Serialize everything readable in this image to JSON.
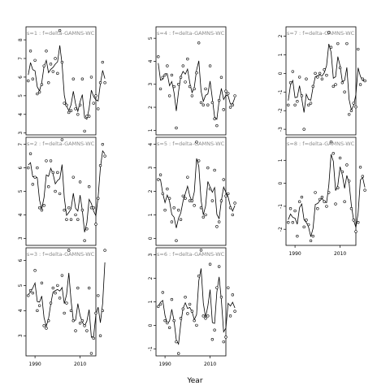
{
  "chart_data": {
    "type": "line",
    "xlabel": "Year",
    "x_ticks": [
      1990,
      2010
    ],
    "x_tick_labels": [
      "1990",
      "2010"
    ],
    "xlim": [
      1986,
      2017
    ],
    "panels": [
      {
        "label": "s=1 : f=delta-GAMNS-WC",
        "ylim": [
          2.9,
          8.7
        ],
        "yticks": [
          3,
          4,
          5,
          6,
          7,
          8
        ],
        "ytick_labels": [
          "3",
          "4",
          "5",
          "6",
          "7",
          "8"
        ],
        "values": [
          5.8,
          7.4,
          5.9,
          6.9,
          5.1,
          5.2,
          5.6,
          6.6,
          7.4,
          5.7,
          6.7,
          6.3,
          7.0,
          6.2,
          8.5,
          6.8,
          4.6,
          4.5,
          4.1,
          4.2,
          5.9,
          4.3,
          4.0,
          4.5,
          5.9,
          3.1,
          3.9,
          3.9,
          6.0,
          4.6,
          5.0,
          4.3,
          5.7,
          6.8,
          5.7
        ]
      },
      {
        "label": "s=2 : f=delta-GAMNS-WC",
        "ylim": [
          2.7,
          7.3
        ],
        "yticks": [
          3,
          4,
          5,
          6,
          7
        ],
        "ytick_labels": [
          "3",
          "4",
          "5",
          "6",
          "7"
        ],
        "values": [
          6.0,
          6.6,
          5.3,
          5.6,
          6.0,
          4.3,
          4.2,
          4.4,
          6.3,
          5.2,
          6.3,
          5.8,
          5.0,
          5.8,
          4.9,
          7.2,
          4.2,
          3.8,
          4.3,
          3.8,
          5.6,
          4.0,
          3.8,
          5.4,
          4.2,
          2.9,
          3.4,
          5.2,
          4.3,
          4.3,
          3.6,
          4.7,
          6.1,
          7.0,
          6.5
        ]
      },
      {
        "label": "s=3 : f=delta-GAMNS-WC",
        "ylim": [
          2.2,
          6.5
        ],
        "yticks": [
          3,
          4,
          5,
          6
        ],
        "ytick_labels": [
          "3",
          "4",
          "5",
          "6"
        ],
        "values": [
          4.6,
          4.8,
          4.7,
          5.6,
          4.0,
          4.2,
          5.1,
          3.4,
          3.3,
          3.6,
          4.3,
          4.9,
          4.7,
          5.0,
          4.5,
          5.4,
          3.9,
          4.3,
          6.4,
          4.0,
          3.6,
          3.2,
          4.9,
          3.5,
          3.6,
          3.4,
          3.2,
          4.9,
          2.3,
          2.9,
          3.9,
          4.6,
          3.0,
          4.0,
          6.4
        ]
      },
      {
        "label": "s=4 : f=delta-GAMNS-WC",
        "ylim": [
          0.8,
          5.5
        ],
        "yticks": [
          1,
          2,
          3,
          4,
          5
        ],
        "ytick_labels": [
          "1",
          "2",
          "3",
          "4",
          "5"
        ],
        "values": [
          4.2,
          2.8,
          3.3,
          3.4,
          3.8,
          2.5,
          3.4,
          2.9,
          1.1,
          3.0,
          3.3,
          3.8,
          3.1,
          4.1,
          2.9,
          2.5,
          2.8,
          3.5,
          4.8,
          2.2,
          2.1,
          2.8,
          2.1,
          3.8,
          2.2,
          1.5,
          1.2,
          2.3,
          3.3,
          1.9,
          2.7,
          2.6,
          2.0,
          2.1,
          2.5
        ]
      },
      {
        "label": "s=5 : f=delta-GAMNS-WC",
        "ylim": [
          -0.3,
          4.3
        ],
        "yticks": [
          0,
          1,
          2,
          3,
          4
        ],
        "ytick_labels": [
          "0",
          "1",
          "2",
          "3",
          "4"
        ],
        "values": [
          2.5,
          2.7,
          1.9,
          1.2,
          2.1,
          1.7,
          0.7,
          1.3,
          -0.1,
          1.2,
          0.8,
          1.8,
          1.7,
          2.6,
          1.6,
          1.6,
          1.4,
          4.1,
          3.3,
          1.3,
          0.9,
          1.0,
          3.0,
          2.1,
          1.6,
          2.9,
          0.5,
          0.7,
          1.6,
          2.5,
          1.8,
          1.9,
          1.3,
          1.0,
          1.5
        ]
      },
      {
        "label": "s=6 : f=delta-GAMNS-WC",
        "ylim": [
          -1.3,
          3.3
        ],
        "yticks": [
          -1,
          0,
          1,
          2,
          3
        ],
        "ytick_labels": [
          "-1",
          "0",
          "1",
          "2",
          "3"
        ],
        "values": [
          0.8,
          0.9,
          1.4,
          0.2,
          0.1,
          -0.1,
          1.1,
          0.2,
          -0.7,
          -1.2,
          0.3,
          0.7,
          1.2,
          0.5,
          0.9,
          0.6,
          0.2,
          0.0,
          2.1,
          3.2,
          0.4,
          0.3,
          0.4,
          2.6,
          -0.6,
          -0.2,
          1.6,
          2.5,
          1.2,
          -0.7,
          -0.5,
          1.6,
          0.4,
          1.3,
          0.6
        ]
      },
      {
        "label": "s=7 : f=delta-GAMNS-WC",
        "ylim": [
          -3.3,
          2.5
        ],
        "yticks": [
          -3,
          -2,
          -1,
          0,
          1,
          2
        ],
        "ytick_labels": [
          "-3",
          "-2",
          "-1",
          "0",
          "1",
          "2"
        ],
        "values": [
          -1.7,
          -0.5,
          0.1,
          -1.7,
          -1.5,
          -0.2,
          -1.2,
          -3.0,
          -0.3,
          -1.7,
          -1.6,
          -0.7,
          0.0,
          -0.2,
          0.0,
          -0.3,
          0.2,
          -0.1,
          2.2,
          1.4,
          -0.7,
          -0.6,
          1.6,
          0.3,
          -0.5,
          -1.0,
          1.6,
          -2.2,
          -2.0,
          -1.6,
          -1.8,
          1.3,
          -0.6,
          -0.3,
          -0.4
        ]
      },
      {
        "label": "s=8 : f=delta-GAMNS-WC",
        "ylim": [
          -2.7,
          2.0
        ],
        "yticks": [
          -2,
          -1,
          0,
          1
        ],
        "ytick_labels": [
          "-2",
          "-1",
          "0",
          "1"
        ],
        "values": [
          -1.7,
          -1.1,
          -1.7,
          -1.2,
          -2.3,
          -0.8,
          -0.6,
          -1.9,
          -1.6,
          -1.8,
          -2.5,
          -2.3,
          -0.4,
          -1.1,
          -0.7,
          -0.6,
          -0.8,
          -1.0,
          -0.4,
          1.8,
          1.3,
          -0.9,
          -0.2,
          1.1,
          0.5,
          -0.8,
          0.8,
          0.1,
          -1.1,
          -1.6,
          -2.1,
          -1.7,
          0.7,
          0.3,
          -0.3
        ]
      }
    ]
  }
}
